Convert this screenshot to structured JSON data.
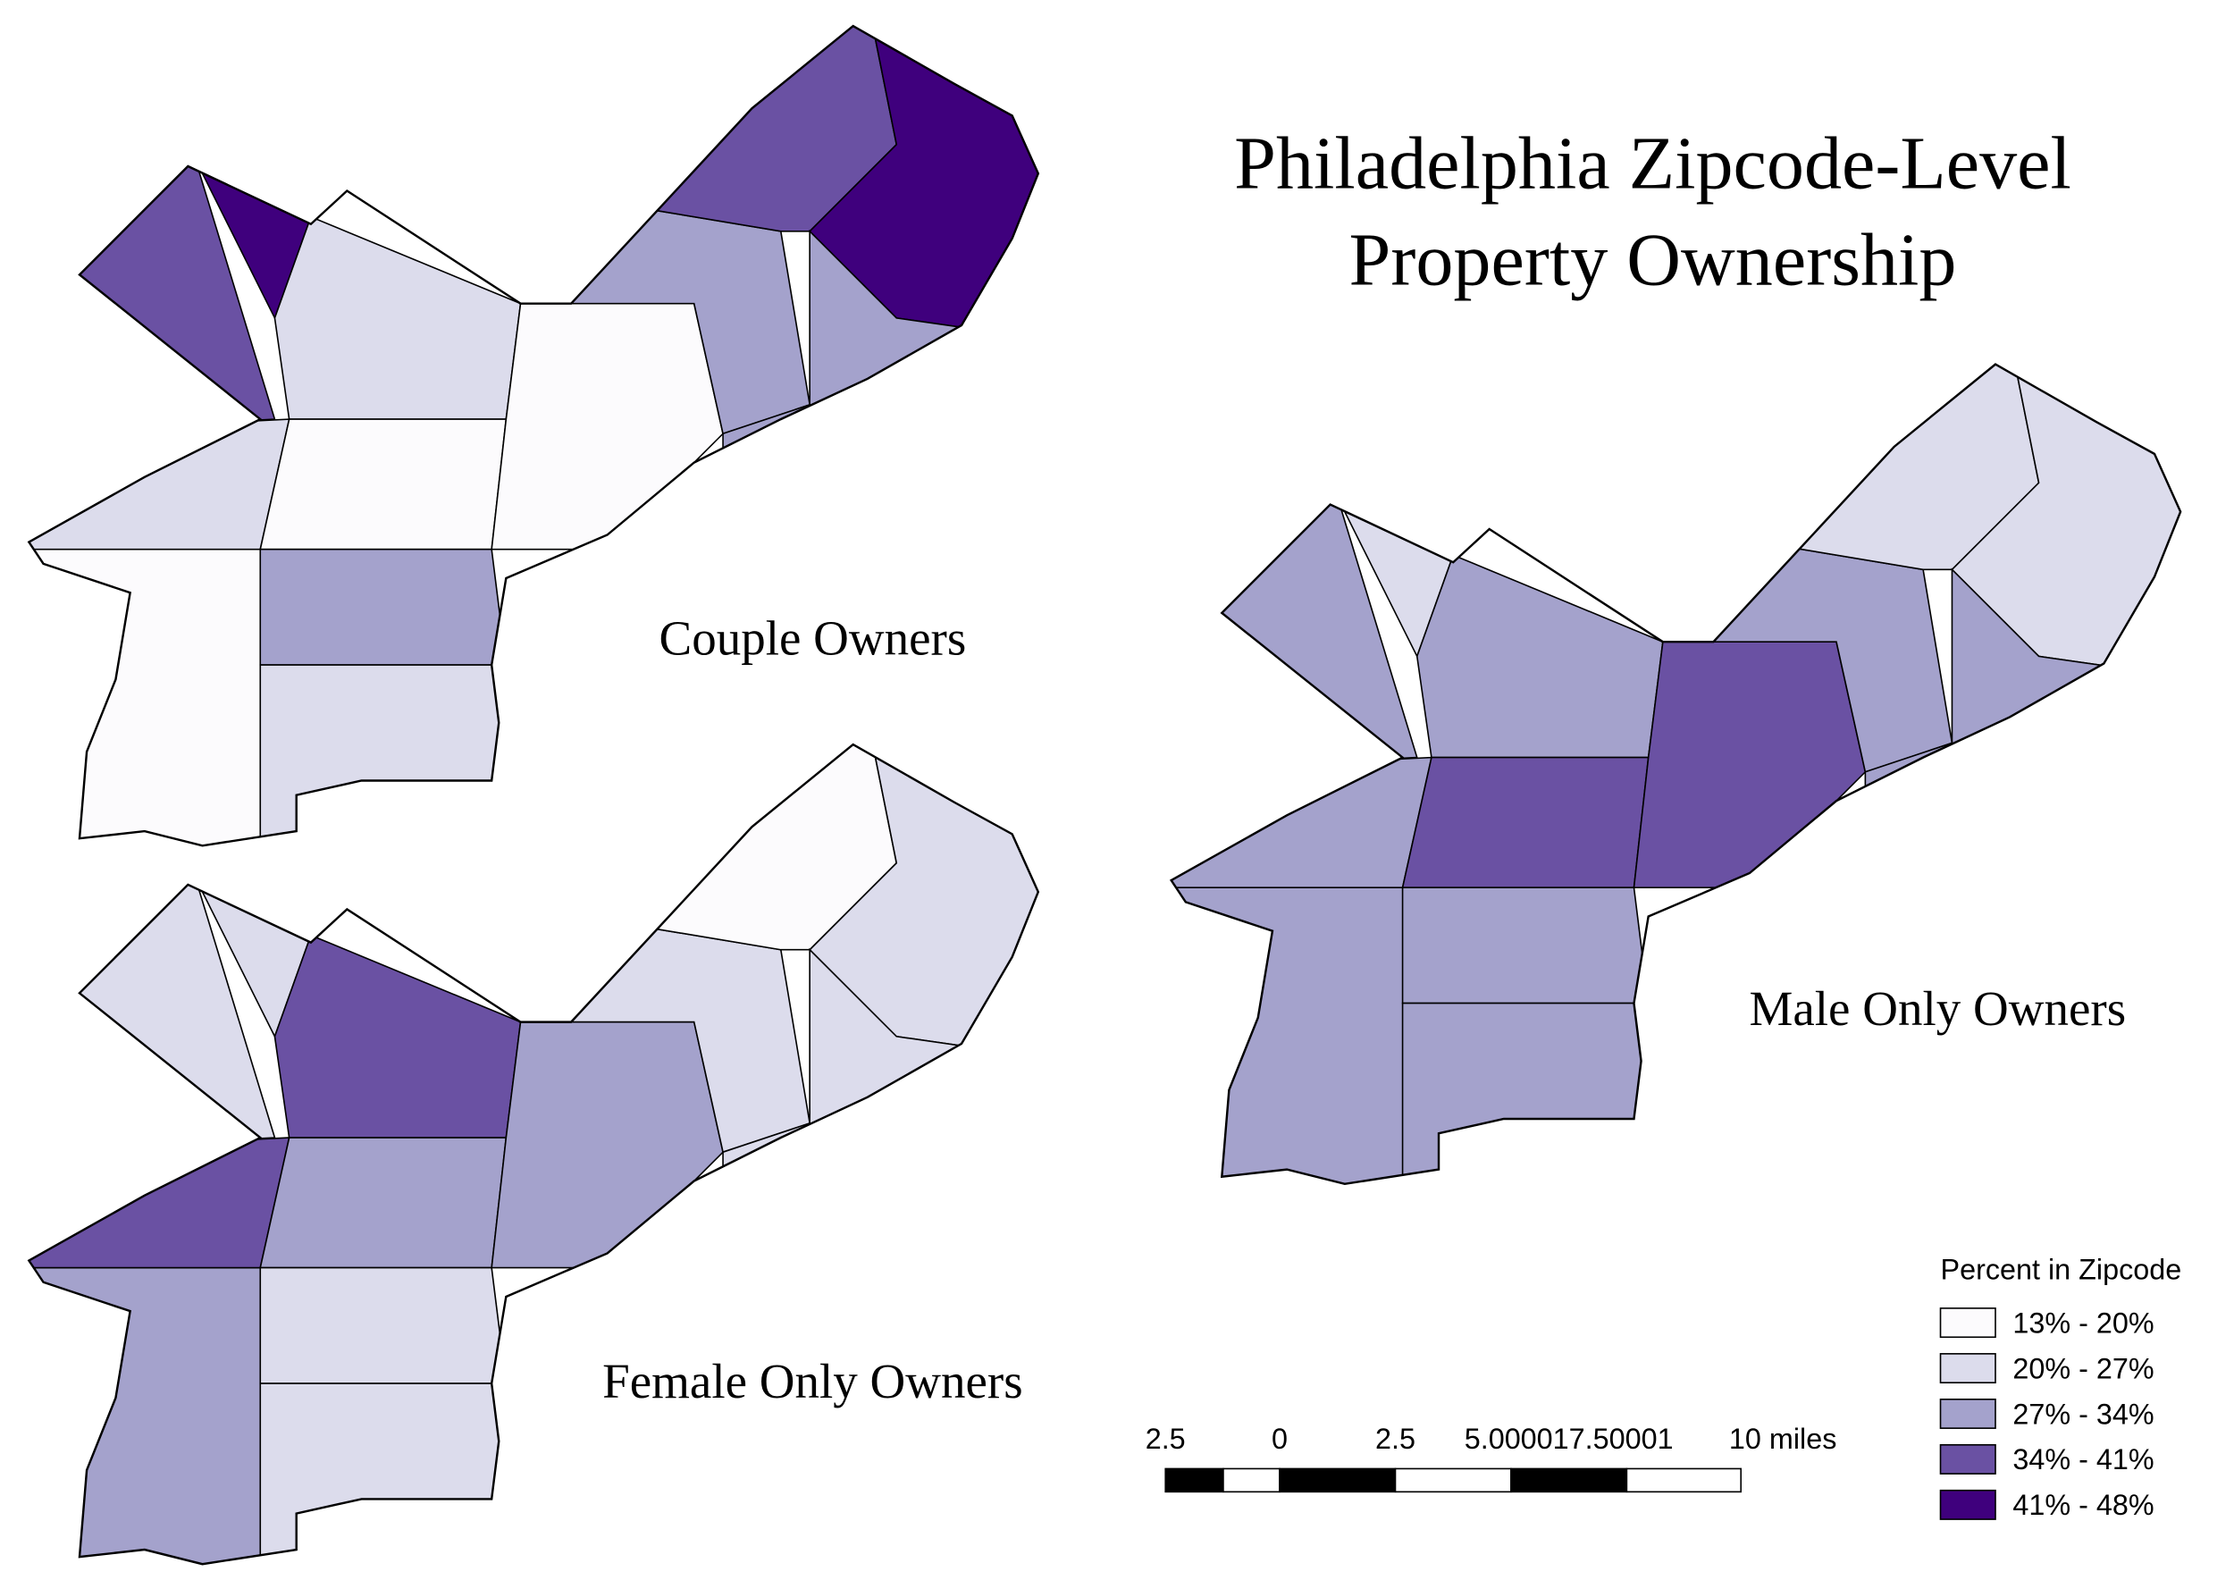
{
  "title": {
    "lines": [
      "Philadelphia  Zipcode-Level",
      "Property  Ownership"
    ]
  },
  "maps": [
    {
      "label": "Couple Owners"
    },
    {
      "label": "Female Only Owners"
    },
    {
      "label": "Male Only Owners"
    }
  ],
  "legend": {
    "title": "Percent in Zipcode",
    "items": [
      {
        "label": "13% - 20%",
        "color": "#fcfbfd"
      },
      {
        "label": "20% - 27%",
        "color": "#dcdcec"
      },
      {
        "label": "27% - 34%",
        "color": "#a4a2cc"
      },
      {
        "label": "34% - 41%",
        "color": "#6a51a3"
      },
      {
        "label": "41% - 48%",
        "color": "#3f007d"
      }
    ]
  },
  "scale_bar": {
    "labels": [
      "2.5",
      "0",
      "2.5",
      "5.000017.50001",
      "10 miles"
    ]
  }
}
